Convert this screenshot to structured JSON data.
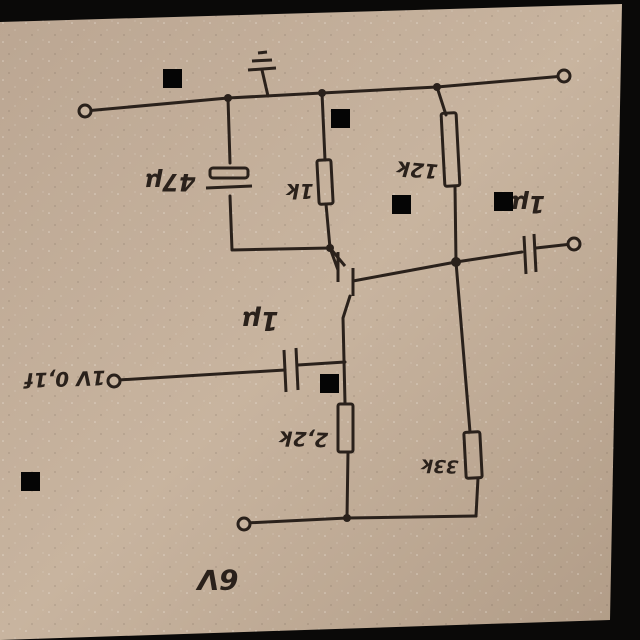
{
  "colors": {
    "paper": "#c5b09b",
    "paper_dark": "#a8927d",
    "ink": "#2a211b",
    "background": "#0a0908"
  },
  "labels": {
    "cap_electrolytic": "47μ",
    "r_collector": "1k",
    "r_bias_top": "12k",
    "cap_output": "1μ",
    "cap_input": "1μ",
    "input_signal": "1V 0,1f",
    "r_emitter": "2,2k",
    "r_bias_bottom": "33k",
    "supply": "6V"
  }
}
